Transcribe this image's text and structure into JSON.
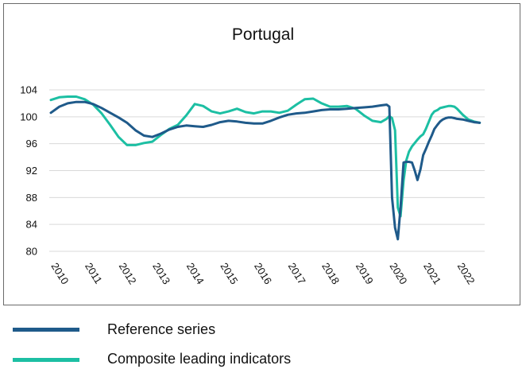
{
  "chart_data": {
    "type": "line",
    "title": "Portugal",
    "xlabel": "",
    "ylabel": "",
    "x_tick_labels": [
      "2010",
      "2011",
      "2012",
      "2013",
      "2014",
      "2015",
      "2016",
      "2017",
      "2018",
      "2019",
      "2020",
      "2021",
      "2022"
    ],
    "y_ticks": [
      80,
      84,
      88,
      92,
      96,
      100,
      104
    ],
    "ylim": [
      80,
      104
    ],
    "xlim": [
      2010.0,
      2022.75
    ],
    "grid": "horizontal",
    "legend_position": "bottom",
    "series": [
      {
        "name": "Reference series",
        "color": "#1f5a8a",
        "x": [
          2010.0,
          2010.25,
          2010.5,
          2010.75,
          2011.0,
          2011.25,
          2011.5,
          2011.75,
          2012.0,
          2012.25,
          2012.5,
          2012.75,
          2013.0,
          2013.25,
          2013.5,
          2013.75,
          2014.0,
          2014.25,
          2014.5,
          2014.75,
          2015.0,
          2015.25,
          2015.5,
          2015.75,
          2016.0,
          2016.25,
          2016.5,
          2016.75,
          2017.0,
          2017.25,
          2017.5,
          2017.75,
          2018.0,
          2018.25,
          2018.5,
          2018.75,
          2019.0,
          2019.25,
          2019.5,
          2019.75,
          2019.92,
          2020.0,
          2020.08,
          2020.17,
          2020.25,
          2020.33,
          2020.42,
          2020.5,
          2020.58,
          2020.67,
          2020.75,
          2020.83,
          2020.92,
          2021.0,
          2021.08,
          2021.17,
          2021.25,
          2021.33,
          2021.42,
          2021.5,
          2021.58,
          2021.67,
          2021.75,
          2021.83,
          2021.92,
          2022.0,
          2022.17,
          2022.33,
          2022.5,
          2022.67
        ],
        "values": [
          100.6,
          101.5,
          102.0,
          102.2,
          102.2,
          101.9,
          101.3,
          100.6,
          99.9,
          99.1,
          98.0,
          97.2,
          97.0,
          97.5,
          98.1,
          98.5,
          98.7,
          98.6,
          98.5,
          98.8,
          99.2,
          99.4,
          99.3,
          99.1,
          99.0,
          99.0,
          99.4,
          99.9,
          100.3,
          100.5,
          100.6,
          100.8,
          101.0,
          101.1,
          101.1,
          101.2,
          101.3,
          101.4,
          101.5,
          101.7,
          101.8,
          101.5,
          88.0,
          83.5,
          81.8,
          86.5,
          93.2,
          93.3,
          93.3,
          93.2,
          92.0,
          90.6,
          92.2,
          94.3,
          95.2,
          96.3,
          97.2,
          98.2,
          98.8,
          99.3,
          99.6,
          99.8,
          99.9,
          99.9,
          99.8,
          99.7,
          99.6,
          99.4,
          99.2,
          99.1
        ]
      },
      {
        "name": "Composite leading indicators",
        "color": "#1cbfa3",
        "x": [
          2010.0,
          2010.25,
          2010.5,
          2010.75,
          2011.0,
          2011.25,
          2011.5,
          2011.75,
          2012.0,
          2012.25,
          2012.5,
          2012.75,
          2013.0,
          2013.25,
          2013.5,
          2013.75,
          2014.0,
          2014.25,
          2014.5,
          2014.75,
          2015.0,
          2015.25,
          2015.5,
          2015.75,
          2016.0,
          2016.25,
          2016.5,
          2016.75,
          2017.0,
          2017.25,
          2017.5,
          2017.75,
          2018.0,
          2018.25,
          2018.5,
          2018.75,
          2019.0,
          2019.25,
          2019.5,
          2019.75,
          2019.92,
          2020.0,
          2020.08,
          2020.17,
          2020.25,
          2020.33,
          2020.42,
          2020.5,
          2020.58,
          2020.67,
          2020.75,
          2020.83,
          2020.92,
          2021.0,
          2021.08,
          2021.17,
          2021.25,
          2021.33,
          2021.42,
          2021.5,
          2021.58,
          2021.67,
          2021.75,
          2021.83,
          2021.92,
          2022.0,
          2022.17,
          2022.33,
          2022.5,
          2022.67
        ],
        "values": [
          102.5,
          102.9,
          103.0,
          103.0,
          102.6,
          101.8,
          100.5,
          98.8,
          97.0,
          95.8,
          95.8,
          96.1,
          96.3,
          97.3,
          98.2,
          98.8,
          100.2,
          101.9,
          101.6,
          100.8,
          100.5,
          100.8,
          101.2,
          100.7,
          100.5,
          100.8,
          100.8,
          100.6,
          100.9,
          101.8,
          102.6,
          102.7,
          102.0,
          101.5,
          101.5,
          101.6,
          101.2,
          100.2,
          99.4,
          99.2,
          99.7,
          100.1,
          99.8,
          98.0,
          86.5,
          85.2,
          90.5,
          93.5,
          94.8,
          95.6,
          96.1,
          96.6,
          97.1,
          97.4,
          98.2,
          99.3,
          100.3,
          100.8,
          101.0,
          101.3,
          101.4,
          101.5,
          101.6,
          101.6,
          101.5,
          101.2,
          100.3,
          99.6,
          99.3,
          99.1
        ]
      }
    ]
  }
}
